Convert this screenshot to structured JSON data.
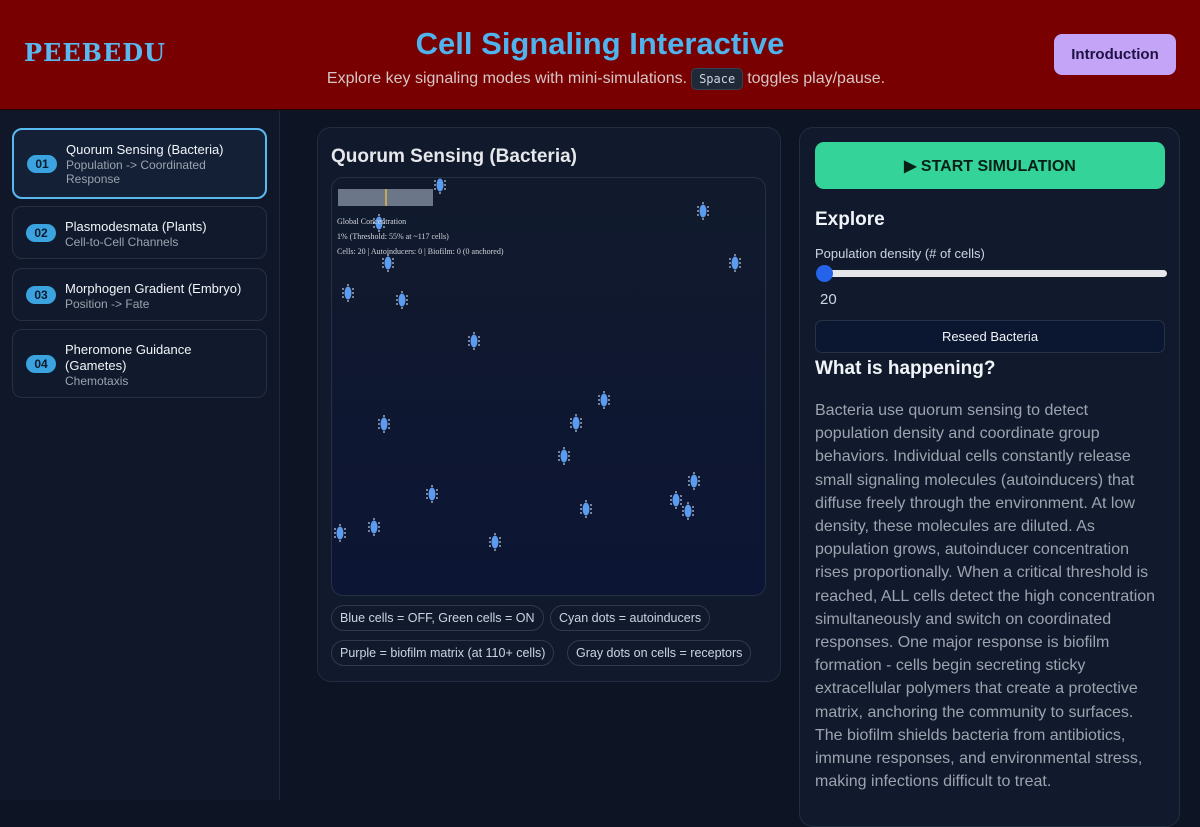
{
  "header": {
    "logo": "PEEBEDU",
    "title": "Cell Signaling Interactive",
    "subtitle_before": "Explore key signaling modes with mini-simulations.",
    "key": "Space",
    "subtitle_after": "toggles play/pause.",
    "button": "Introduction"
  },
  "sidebar": {
    "items": [
      {
        "number": "01",
        "title": "Quorum Sensing (Bacteria)",
        "subtitle": "Population -> Coordinated Response"
      },
      {
        "number": "02",
        "title": "Plasmodesmata (Plants)",
        "subtitle": "Cell-to-Cell Channels"
      },
      {
        "number": "03",
        "title": "Morphogen Gradient (Embryo)",
        "subtitle": "Position -> Fate"
      },
      {
        "number": "04",
        "title": "Pheromone Guidance (Gametes)",
        "subtitle": "Chemotaxis"
      }
    ]
  },
  "simulation": {
    "title": "Quorum Sensing (Bacteria)",
    "overlay": [
      "Global Concentration",
      "1% (Threshold: 55% at ~117 cells)",
      "Cells: 20 | Autoinducers: 0 | Biofilm: 0 (0 anchored)"
    ],
    "legend": [
      "Blue cells = OFF, Green cells = ON",
      "Cyan dots = autoinducers",
      "Purple = biofilm matrix (at 110+ cells)",
      "Gray dots on cells = receptors"
    ]
  },
  "controls": {
    "start_button": "▶ START SIMULATION",
    "explore_heading": "Explore",
    "slider_label": "Population density (# of cells)",
    "slider_value": 20,
    "reseed_button": "Reseed Bacteria",
    "info_heading": "What is happening?",
    "info_text": "Bacteria use quorum sensing to detect population density and coordinate group behaviors. Individual cells constantly release small signaling molecules (autoinducers) that diffuse freely through the environment. At low density, these molecules are diluted. As population grows, autoinducer concentration rises proportionally. When a critical threshold is reached, ALL cells detect the high concentration simultaneously and switch on coordinated responses. One major response is biofilm formation - cells begin secreting sticky extracellular polymers that create a protective matrix, anchoring the community to surfaces. The biofilm shields bacteria from antibiotics, immune responses, and environmental stress, making infections difficult to treat."
  }
}
